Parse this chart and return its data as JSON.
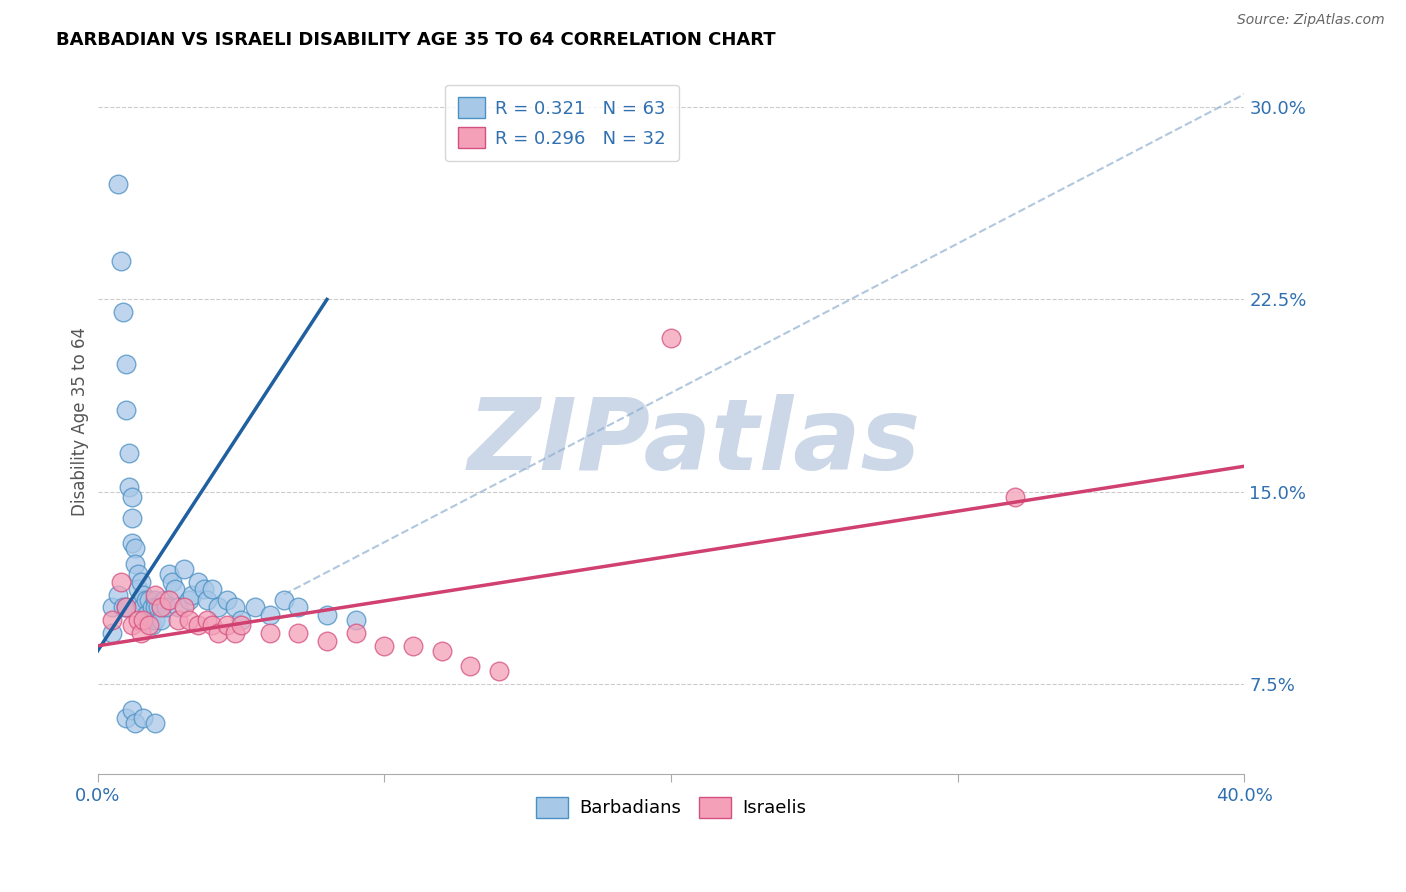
{
  "title": "BARBADIAN VS ISRAELI DISABILITY AGE 35 TO 64 CORRELATION CHART",
  "source": "Source: ZipAtlas.com",
  "ylabel": "Disability Age 35 to 64",
  "xlim": [
    0.0,
    0.4
  ],
  "ylim": [
    0.04,
    0.315
  ],
  "xtick_positions": [
    0.0,
    0.1,
    0.2,
    0.3,
    0.4
  ],
  "xtick_labels": [
    "0.0%",
    "",
    "",
    "",
    "40.0%"
  ],
  "ytick_positions": [
    0.075,
    0.15,
    0.225,
    0.3
  ],
  "ytick_labels": [
    "7.5%",
    "15.0%",
    "22.5%",
    "30.0%"
  ],
  "blue_fill": "#a8c8e8",
  "blue_edge": "#4a90c4",
  "pink_fill": "#f4a0b8",
  "pink_edge": "#d45080",
  "blue_line_color": "#2060a0",
  "pink_line_color": "#d04070",
  "dash_color": "#90b0d0",
  "legend_R_blue": "R = 0.321",
  "legend_N_blue": "N = 63",
  "legend_R_pink": "R = 0.296",
  "legend_N_pink": "N = 32",
  "blue_scatter_x": [
    0.005,
    0.005,
    0.007,
    0.007,
    0.008,
    0.009,
    0.009,
    0.01,
    0.01,
    0.01,
    0.011,
    0.011,
    0.012,
    0.012,
    0.012,
    0.013,
    0.013,
    0.014,
    0.014,
    0.015,
    0.015,
    0.016,
    0.016,
    0.017,
    0.017,
    0.018,
    0.018,
    0.019,
    0.019,
    0.02,
    0.02,
    0.02,
    0.021,
    0.022,
    0.022,
    0.023,
    0.024,
    0.025,
    0.026,
    0.027,
    0.028,
    0.03,
    0.032,
    0.033,
    0.035,
    0.037,
    0.038,
    0.04,
    0.042,
    0.045,
    0.048,
    0.05,
    0.055,
    0.06,
    0.065,
    0.07,
    0.08,
    0.09,
    0.01,
    0.012,
    0.013,
    0.016,
    0.02
  ],
  "blue_scatter_y": [
    0.105,
    0.095,
    0.27,
    0.11,
    0.24,
    0.22,
    0.105,
    0.105,
    0.2,
    0.182,
    0.165,
    0.152,
    0.148,
    0.14,
    0.13,
    0.128,
    0.122,
    0.118,
    0.112,
    0.115,
    0.108,
    0.11,
    0.105,
    0.108,
    0.102,
    0.108,
    0.1,
    0.105,
    0.098,
    0.108,
    0.105,
    0.1,
    0.105,
    0.105,
    0.1,
    0.108,
    0.105,
    0.118,
    0.115,
    0.112,
    0.105,
    0.12,
    0.108,
    0.11,
    0.115,
    0.112,
    0.108,
    0.112,
    0.105,
    0.108,
    0.105,
    0.1,
    0.105,
    0.102,
    0.108,
    0.105,
    0.102,
    0.1,
    0.062,
    0.065,
    0.06,
    0.062,
    0.06
  ],
  "pink_scatter_x": [
    0.005,
    0.008,
    0.01,
    0.012,
    0.014,
    0.015,
    0.016,
    0.018,
    0.02,
    0.022,
    0.025,
    0.028,
    0.03,
    0.032,
    0.035,
    0.038,
    0.04,
    0.042,
    0.045,
    0.048,
    0.05,
    0.06,
    0.07,
    0.08,
    0.09,
    0.1,
    0.11,
    0.12,
    0.13,
    0.14,
    0.2,
    0.32
  ],
  "pink_scatter_y": [
    0.1,
    0.115,
    0.105,
    0.098,
    0.1,
    0.095,
    0.1,
    0.098,
    0.11,
    0.105,
    0.108,
    0.1,
    0.105,
    0.1,
    0.098,
    0.1,
    0.098,
    0.095,
    0.098,
    0.095,
    0.098,
    0.095,
    0.095,
    0.092,
    0.095,
    0.09,
    0.09,
    0.088,
    0.082,
    0.08,
    0.21,
    0.148
  ],
  "blue_line_x": [
    0.0,
    0.08
  ],
  "blue_line_y": [
    0.088,
    0.225
  ],
  "pink_line_x": [
    0.0,
    0.4
  ],
  "pink_line_y": [
    0.09,
    0.16
  ],
  "dash_line_x": [
    0.065,
    0.4
  ],
  "dash_line_y": [
    0.11,
    0.305
  ],
  "watermark": "ZIPatlas",
  "watermark_color": "#ccd8e8",
  "watermark_fontsize": 72,
  "marker_size": 180
}
